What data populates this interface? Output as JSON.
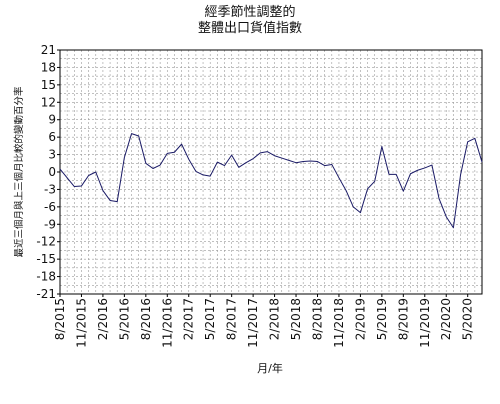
{
  "chart_data": {
    "type": "line",
    "title": [
      "經季節性調整的",
      "整體出口貨值指數"
    ],
    "xlabel": "月/年",
    "ylabel": "最近三個月與上三個月比較的變動百分率",
    "ylim": [
      -21,
      21
    ],
    "y_ticks": [
      -21,
      -18,
      -15,
      -12,
      -9,
      -6,
      -3,
      0,
      3,
      6,
      9,
      12,
      15,
      18,
      21
    ],
    "x_start": "8/2015",
    "x_end": "7/2020",
    "x_tick_labels": [
      "8/2015",
      "11/2015",
      "2/2016",
      "5/2016",
      "8/2016",
      "11/2016",
      "2/2017",
      "5/2017",
      "8/2017",
      "11/2017",
      "2/2018",
      "5/2018",
      "8/2018",
      "11/2018",
      "2/2019",
      "5/2019",
      "8/2019",
      "11/2019",
      "2/2020",
      "5/2020"
    ],
    "grid": true,
    "series": [
      {
        "color": "#1a1a66",
        "values": [
          0.5,
          -1.0,
          -2.5,
          -2.4,
          -0.6,
          0.0,
          -3.2,
          -4.9,
          -5.1,
          2.5,
          6.6,
          6.2,
          1.5,
          0.6,
          1.2,
          3.2,
          3.4,
          4.8,
          2.2,
          0.1,
          -0.5,
          -0.7,
          1.7,
          1.1,
          2.9,
          0.8,
          1.6,
          2.3,
          3.3,
          3.5,
          2.8,
          2.4,
          2.0,
          1.6,
          1.8,
          1.9,
          1.8,
          1.1,
          1.3,
          -1.0,
          -3.2,
          -6.0,
          -7.0,
          -2.9,
          -1.6,
          4.4,
          -0.4,
          -0.4,
          -3.3,
          -0.3,
          0.3,
          0.7,
          1.2,
          -4.6,
          -7.7,
          -9.6,
          -0.5,
          5.2,
          5.8,
          1.7
        ]
      }
    ]
  }
}
